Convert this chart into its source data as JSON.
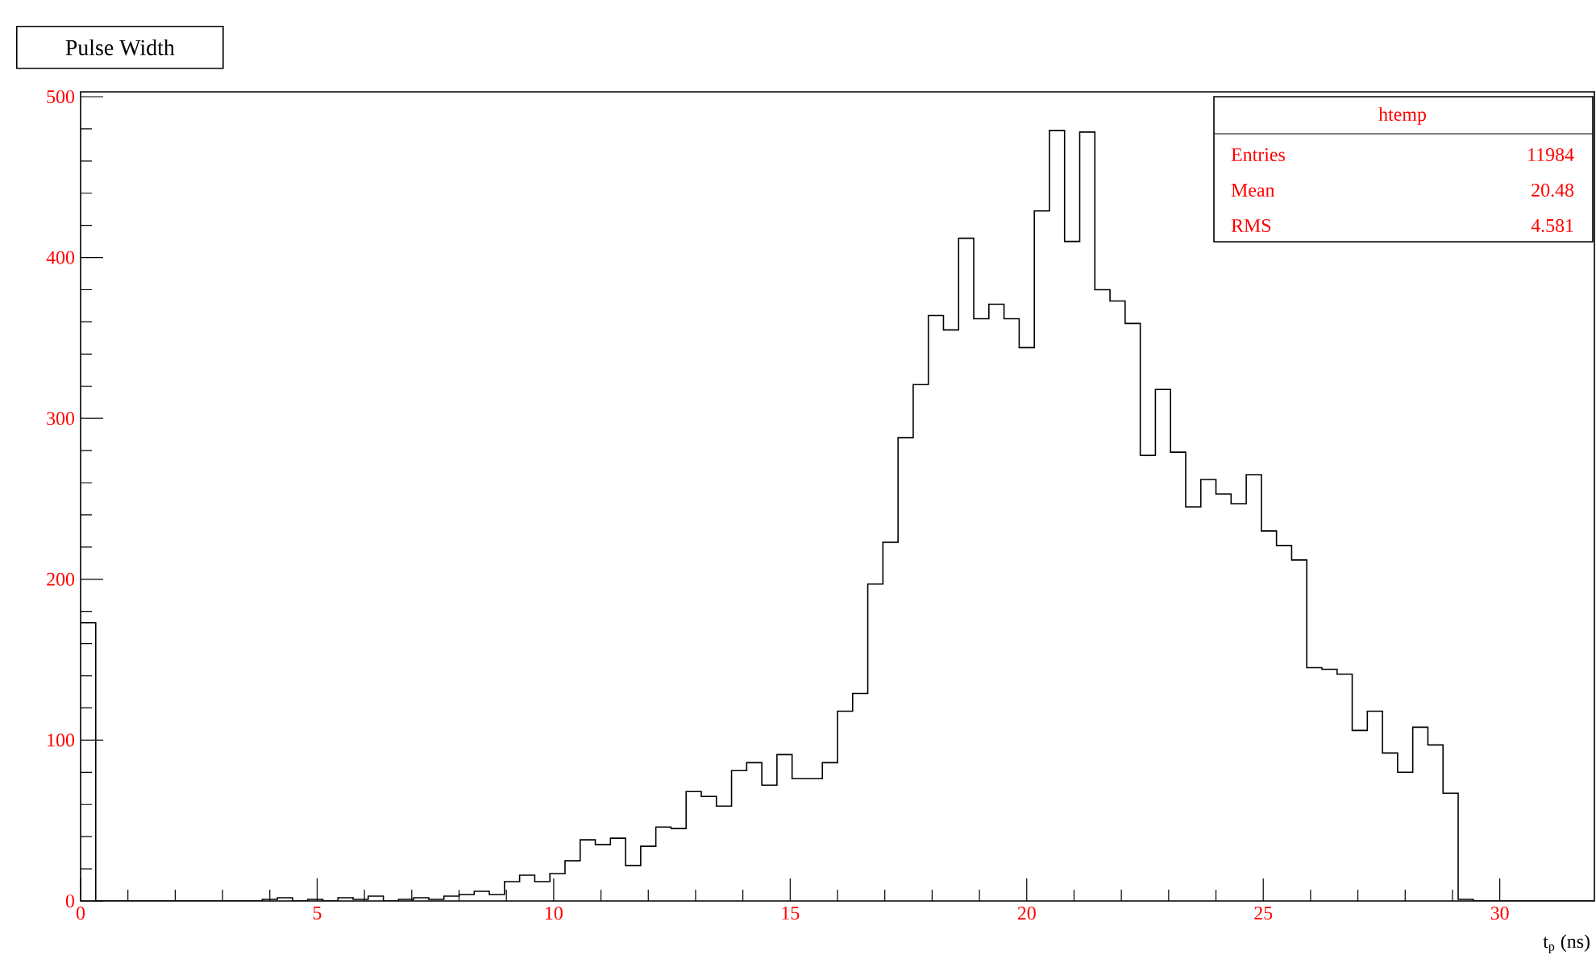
{
  "chart_data": {
    "type": "histogram",
    "title": "Pulse Width",
    "xlabel": "t$_{p}$ (ns)",
    "color": "#000000",
    "bins": [
      0,
      0.32,
      0.64,
      0.96,
      1.28,
      1.6,
      1.92,
      2.24,
      2.56,
      2.88,
      3.2,
      3.52,
      3.84,
      4.16,
      4.48,
      4.8,
      5.12,
      5.44,
      5.76,
      6.08,
      6.4,
      6.72,
      7.04,
      7.36,
      7.68,
      8,
      8.32,
      8.64,
      8.96,
      9.28,
      9.6,
      9.92,
      10.24,
      10.56,
      10.88,
      11.2,
      11.52,
      11.84,
      12.16,
      12.48,
      12.8,
      13.12,
      13.44,
      13.76,
      14.08,
      14.4,
      14.72,
      15.04,
      15.36,
      15.68,
      16,
      16.32,
      16.64,
      16.96,
      17.28,
      17.6,
      17.92,
      18.24,
      18.56,
      18.88,
      19.2,
      19.52,
      19.84,
      20.16,
      20.48,
      20.8,
      21.12,
      21.44,
      21.76,
      22.08,
      22.4,
      22.72,
      23.04,
      23.36,
      23.68,
      24,
      24.32,
      24.64,
      24.96,
      25.28,
      25.6,
      25.92,
      26.24,
      26.56,
      26.88,
      27.2,
      27.52,
      27.84,
      28.16,
      28.48,
      28.8,
      29.12,
      29.44,
      29.76,
      30.08,
      30.4,
      30.72,
      31.04,
      31.36,
      31.68,
      32
    ],
    "values": [
      173,
      0,
      0,
      0,
      0,
      0,
      0,
      0,
      0,
      0,
      0,
      0,
      1,
      2,
      0,
      1,
      0,
      2,
      1,
      3,
      0,
      1,
      2,
      1,
      3,
      4,
      6,
      4,
      12,
      16,
      12,
      17,
      25,
      38,
      35,
      39,
      22,
      34,
      46,
      45,
      68,
      65,
      59,
      81,
      86,
      72,
      91,
      76,
      76,
      86,
      118,
      129,
      197,
      223,
      288,
      321,
      364,
      355,
      412,
      362,
      371,
      362,
      344,
      429,
      479,
      410,
      478,
      380,
      373,
      359,
      277,
      318,
      279,
      245,
      262,
      253,
      247,
      265,
      230,
      221,
      212,
      145,
      144,
      141,
      106,
      118,
      92,
      80,
      108,
      97,
      67,
      1,
      0,
      0,
      0,
      0,
      0,
      0,
      0,
      0
    ],
    "xlim": [
      0,
      32
    ],
    "ylim": [
      0,
      503
    ],
    "xticks": [
      0,
      5,
      10,
      15,
      20,
      25,
      30
    ],
    "yticks": [
      0,
      100,
      200,
      300,
      400,
      500
    ],
    "annotations": [
      "htemp",
      "Entries",
      "11984",
      "Mean",
      "20.48",
      "RMS",
      "4.581"
    ]
  }
}
